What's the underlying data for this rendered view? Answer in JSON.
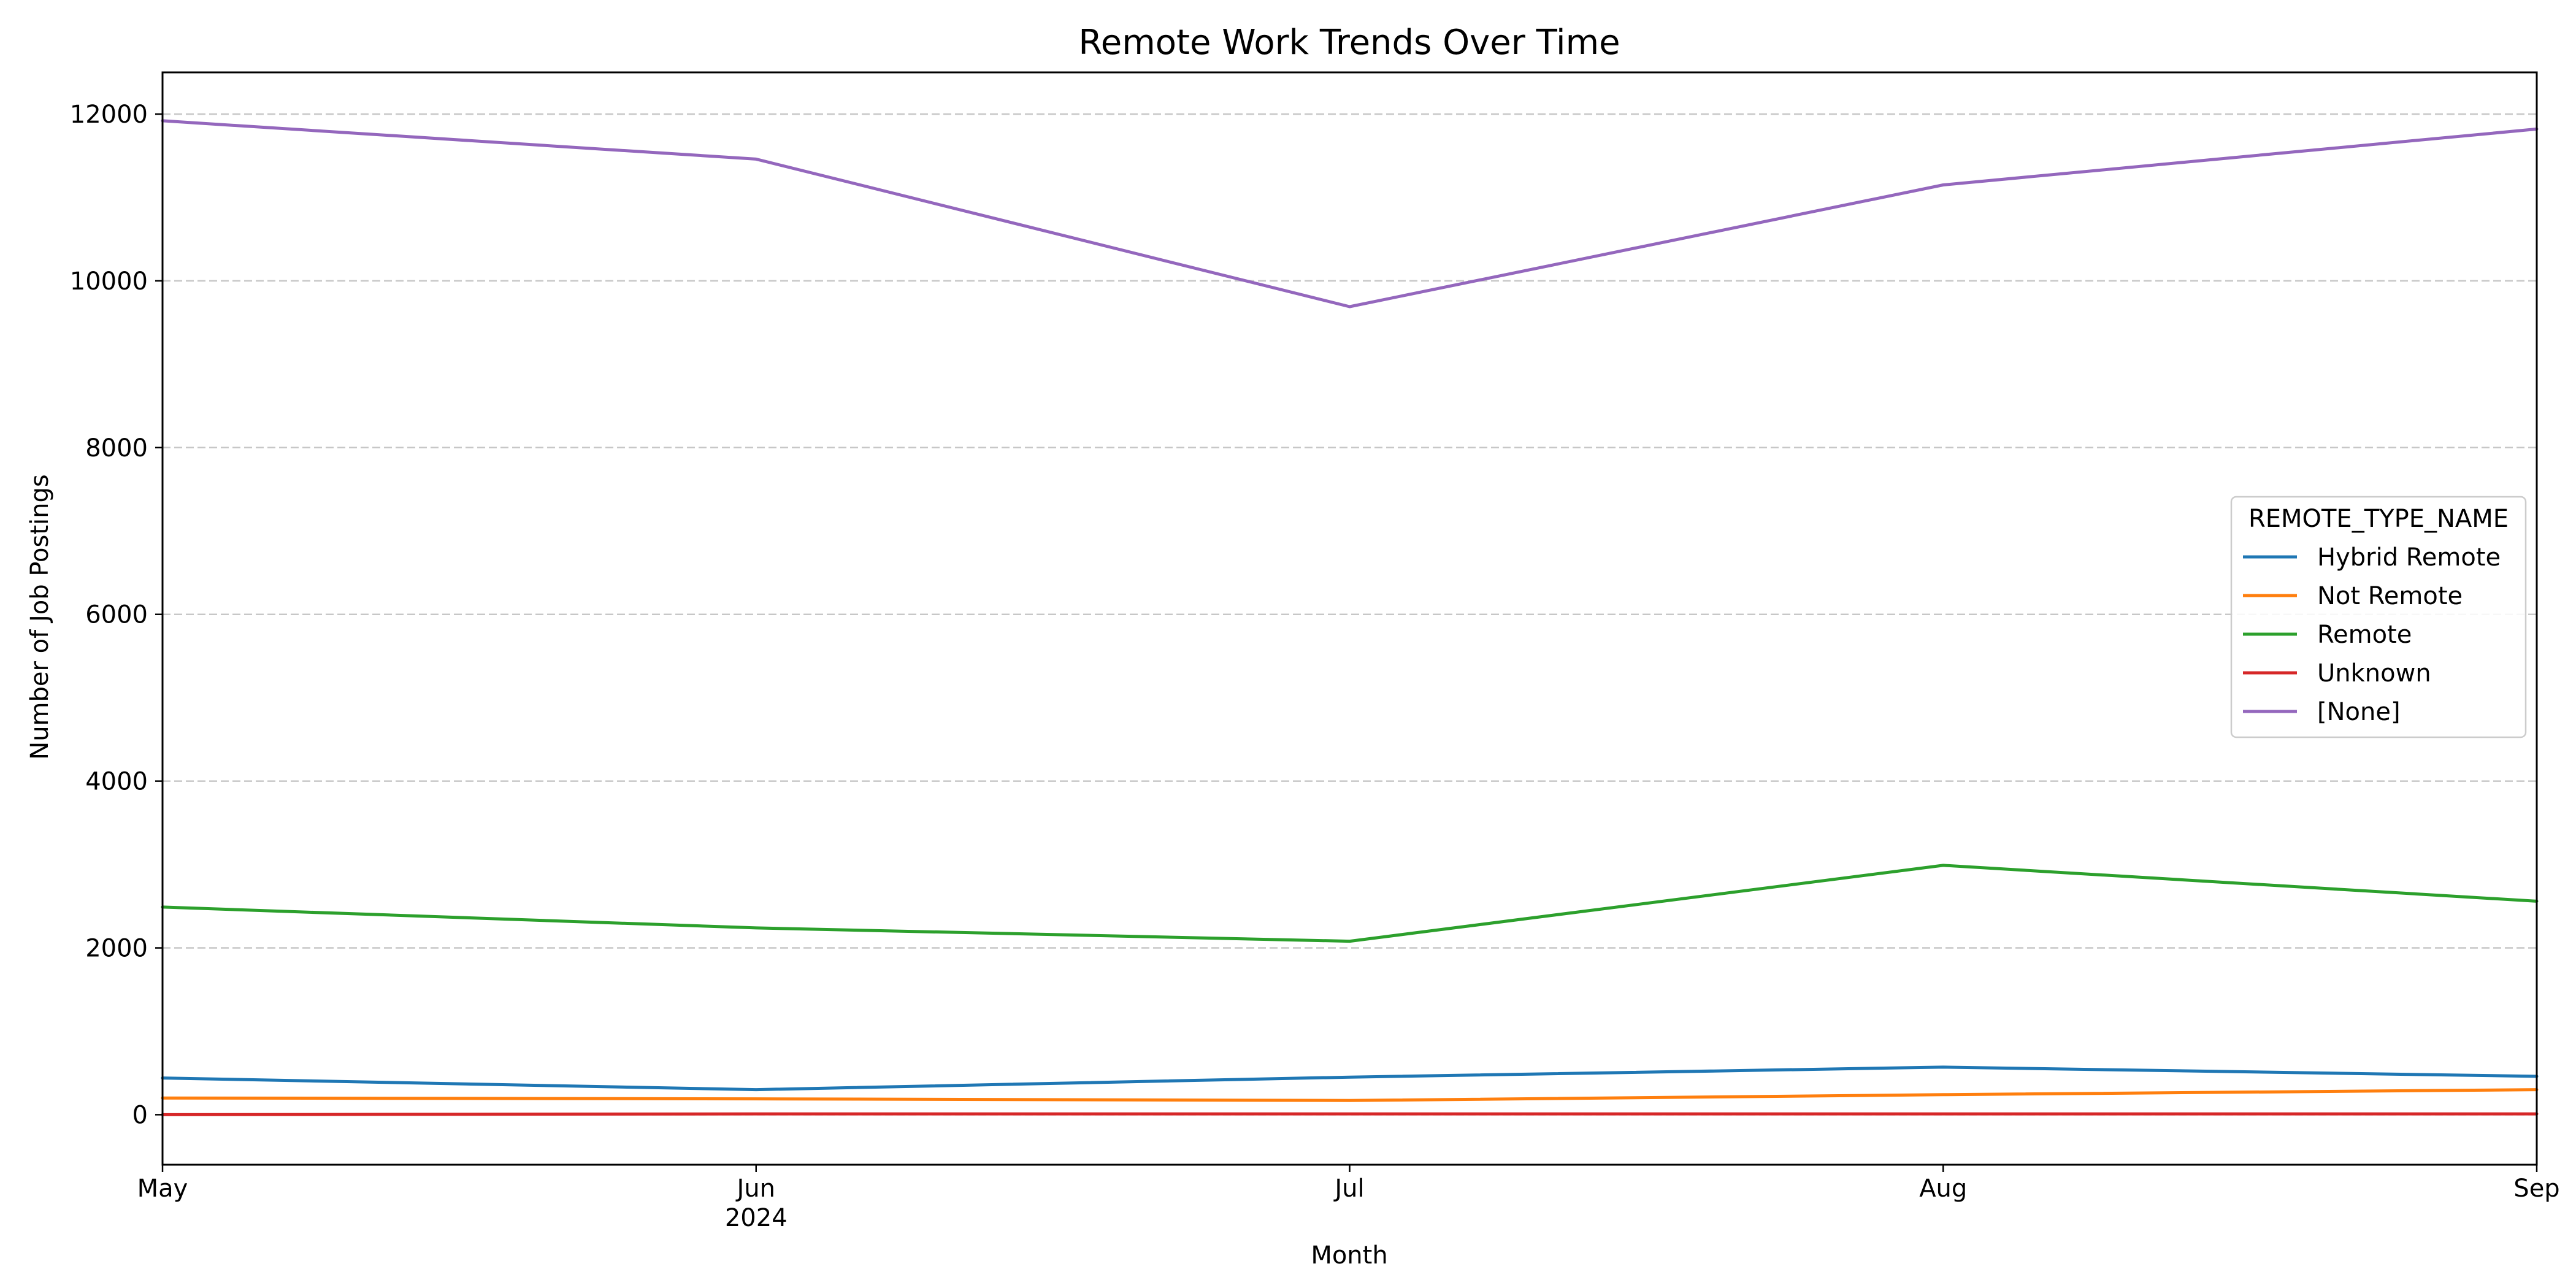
{
  "chart_data": {
    "type": "line",
    "title": "Remote Work Trends Over Time",
    "xlabel": "Month",
    "ylabel": "Number of Job Postings",
    "categories": [
      "May",
      "Jun",
      "Jul",
      "Aug",
      "Sep"
    ],
    "x_year_label": "2024",
    "x_year_label_under": "Jun",
    "ylim": [
      -600,
      12500
    ],
    "yticks": [
      0,
      2000,
      4000,
      6000,
      8000,
      10000,
      12000
    ],
    "grid": "y-dashed",
    "legend": {
      "title": "REMOTE_TYPE_NAME",
      "placement": "center-right"
    },
    "series": [
      {
        "name": "Hybrid Remote",
        "color": "#1f77b4",
        "values": [
          440,
          300,
          450,
          570,
          460
        ]
      },
      {
        "name": "Not Remote",
        "color": "#ff7f0e",
        "values": [
          200,
          190,
          170,
          240,
          300
        ]
      },
      {
        "name": "Remote",
        "color": "#2ca02c",
        "values": [
          2490,
          2240,
          2080,
          2990,
          2560
        ]
      },
      {
        "name": "Unknown",
        "color": "#d62728",
        "values": [
          0,
          10,
          10,
          10,
          10
        ]
      },
      {
        "name": "[None]",
        "color": "#9467bd",
        "values": [
          11920,
          11460,
          9690,
          11150,
          11820
        ]
      }
    ]
  }
}
